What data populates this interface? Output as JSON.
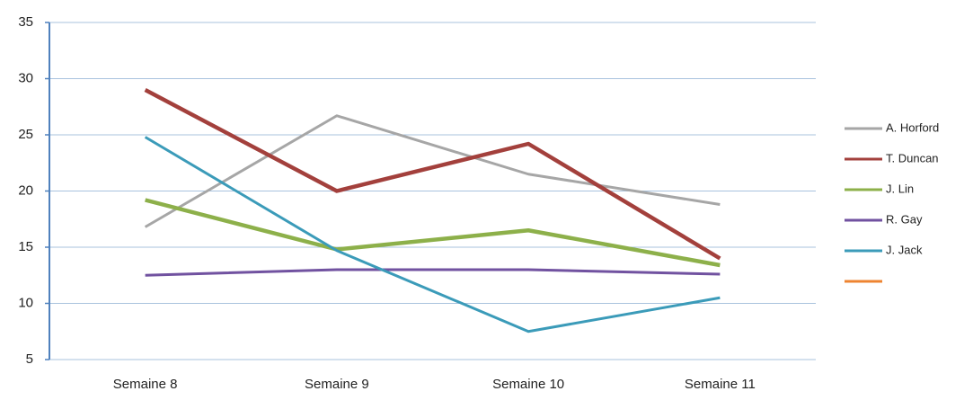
{
  "chart_data": {
    "type": "line",
    "categories": [
      "Semaine 8",
      "Semaine 9",
      "Semaine 10",
      "Semaine 11"
    ],
    "series": [
      {
        "name": "A. Horford",
        "color": "#a6a6a6",
        "values": [
          16.8,
          26.7,
          21.5,
          18.8
        ]
      },
      {
        "name": "T. Duncan",
        "color": "#a3403c",
        "values": [
          29.0,
          20.0,
          24.2,
          14.0
        ]
      },
      {
        "name": "J. Lin",
        "color": "#8db04a",
        "values": [
          19.2,
          14.8,
          16.5,
          13.4
        ]
      },
      {
        "name": "R. Gay",
        "color": "#7152a0",
        "values": [
          12.5,
          13.0,
          13.0,
          12.6
        ]
      },
      {
        "name": "J. Jack",
        "color": "#3b9bb9",
        "values": [
          24.8,
          14.7,
          7.5,
          10.5
        ]
      },
      {
        "name": null,
        "color": "#ee8431",
        "values": [
          null,
          null,
          null,
          null
        ]
      }
    ],
    "ylim": [
      5,
      35
    ],
    "yticks": [
      5,
      10,
      15,
      20,
      25,
      30,
      35
    ],
    "grid": true,
    "legend": "right"
  }
}
